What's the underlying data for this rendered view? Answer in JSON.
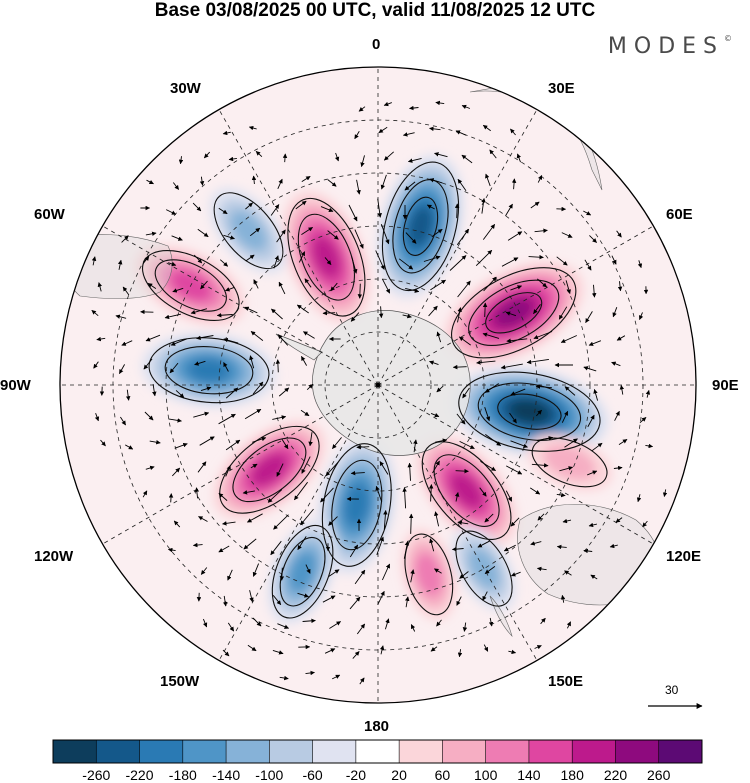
{
  "title": "Base 03/08/2025 00 UTC, valid 11/08/2025 12 UTC",
  "logo": "MODES",
  "logo_mark": "©",
  "longitude_labels": {
    "top": "0",
    "top_right": "30E",
    "right_upper": "60E",
    "right": "90E",
    "right_lower": "120E",
    "bottom_right": "150E",
    "bottom": "180",
    "bottom_left": "150W",
    "left_lower": "120W",
    "left": "90W",
    "left_upper": "60W",
    "top_left": "30W"
  },
  "reference_vector": "30",
  "colorbar": {
    "labels": [
      "-260",
      "-220",
      "-180",
      "-140",
      "-100",
      "-60",
      "-20",
      "20",
      "60",
      "100",
      "140",
      "180",
      "220",
      "260"
    ],
    "colors": [
      "#0d3d5c",
      "#14588a",
      "#2a7ab4",
      "#4f95c7",
      "#86b2d8",
      "#b8cbe3",
      "#e0e3f1",
      "#ffffff",
      "#fbd6da",
      "#f6aec3",
      "#ee7cb3",
      "#df46a1",
      "#bd1a8c",
      "#8e0a7e",
      "#5c0a74"
    ]
  },
  "anomaly_centers": [
    {
      "name": "neg-30E",
      "lon": 15,
      "colat": 31,
      "value": -230
    },
    {
      "name": "pos-60E",
      "lon": 62,
      "colat": 29,
      "value": 240
    },
    {
      "name": "neg-90E",
      "lon": 100,
      "colat": 29,
      "value": -260
    },
    {
      "name": "pos-140E",
      "lon": 140,
      "colat": 26,
      "value": 190
    },
    {
      "name": "neg-170W",
      "lon": -170,
      "colat": 23,
      "value": -210
    },
    {
      "name": "pos-125W",
      "lon": -128,
      "colat": 26,
      "value": 190
    },
    {
      "name": "neg-85W",
      "lon": -85,
      "colat": 32,
      "value": -200
    },
    {
      "name": "pos-60W",
      "lon": -62,
      "colat": 40,
      "value": 160
    },
    {
      "name": "pos-15W",
      "lon": -22,
      "colat": 26,
      "value": 210
    },
    {
      "name": "neg-40W",
      "lon": -40,
      "colat": 38,
      "value": -120
    },
    {
      "name": "pos-170E",
      "lon": 165,
      "colat": 37,
      "value": 100
    },
    {
      "name": "neg-150E",
      "lon": 150,
      "colat": 40,
      "value": -100
    },
    {
      "name": "neg-160W",
      "lon": -158,
      "colat": 38,
      "value": -140
    },
    {
      "name": "pos-110E",
      "lon": 112,
      "colat": 39,
      "value": 90
    }
  ]
}
